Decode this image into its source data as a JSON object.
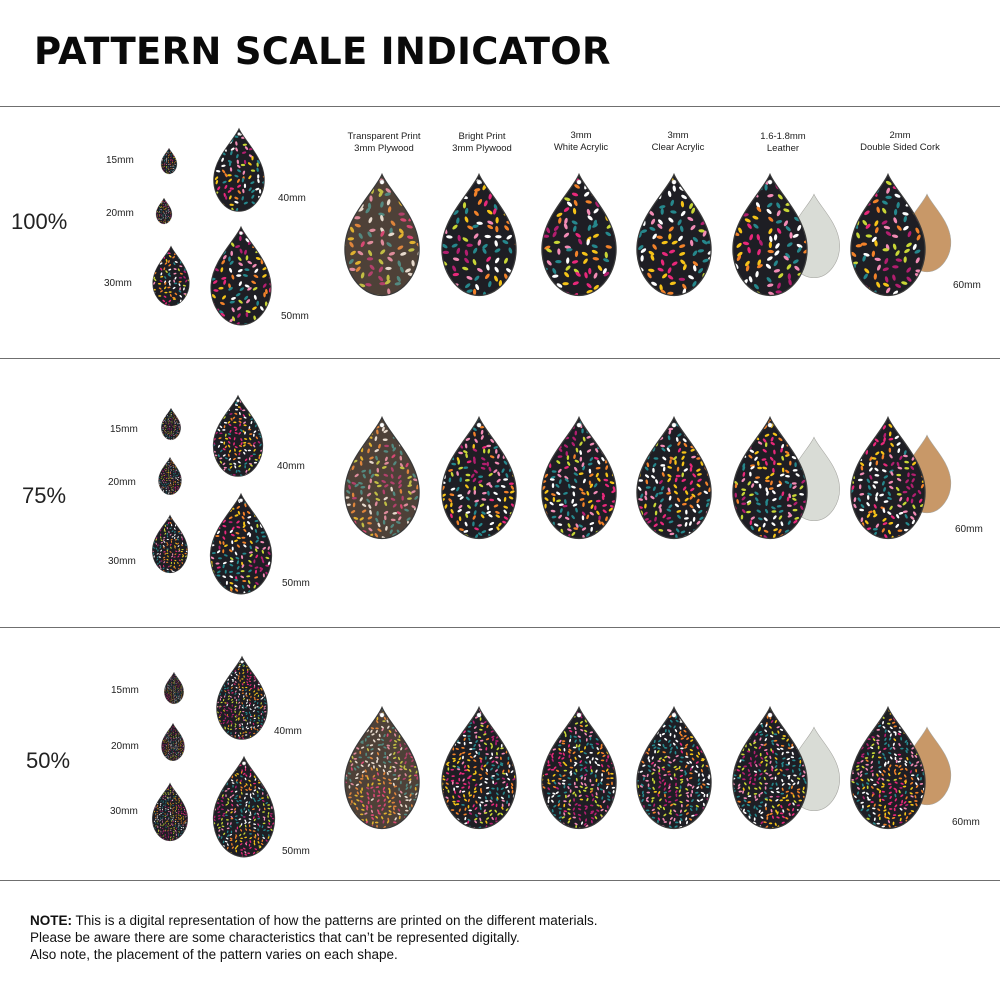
{
  "title": "PATTERN SCALE INDICATOR",
  "materials": [
    {
      "line1": "Transparent Print",
      "line2": "3mm Plywood"
    },
    {
      "line1": "Bright Print",
      "line2": "3mm Plywood"
    },
    {
      "line1": "3mm",
      "line2": "White Acrylic"
    },
    {
      "line1": "3mm",
      "line2": "Clear Acrylic"
    },
    {
      "line1": "1.6-1.8mm",
      "line2": "Leather"
    },
    {
      "line1": "2mm",
      "line2": "Double Sided Cork"
    }
  ],
  "sections": [
    {
      "scale": "100%",
      "sizes": [
        "15mm",
        "20mm",
        "30mm",
        "40mm",
        "50mm"
      ],
      "large_size": "60mm"
    },
    {
      "scale": "75%",
      "sizes": [
        "15mm",
        "20mm",
        "30mm",
        "40mm",
        "50mm"
      ],
      "large_size": "60mm"
    },
    {
      "scale": "50%",
      "sizes": [
        "15mm",
        "20mm",
        "30mm",
        "40mm",
        "50mm"
      ],
      "large_size": "60mm"
    }
  ],
  "footer": {
    "note_label": "NOTE:",
    "line1": "This is a digital representation of how the patterns are printed on the different materials.",
    "line2": "Please be aware there are some characteristics that can’t be represented digitally.",
    "line3": "Also note, the placement of the pattern varies on each shape."
  },
  "colors": {
    "pattern_base": "#1e1e24",
    "pattern_petals": [
      "#e8287a",
      "#f5c318",
      "#f2822a",
      "#ffffff",
      "#26878c",
      "#f28bb5",
      "#c8d636",
      "#b21e6f"
    ],
    "leather": "#d9dcd6",
    "cork": "#c89868",
    "rule": "#6f6f6f"
  }
}
